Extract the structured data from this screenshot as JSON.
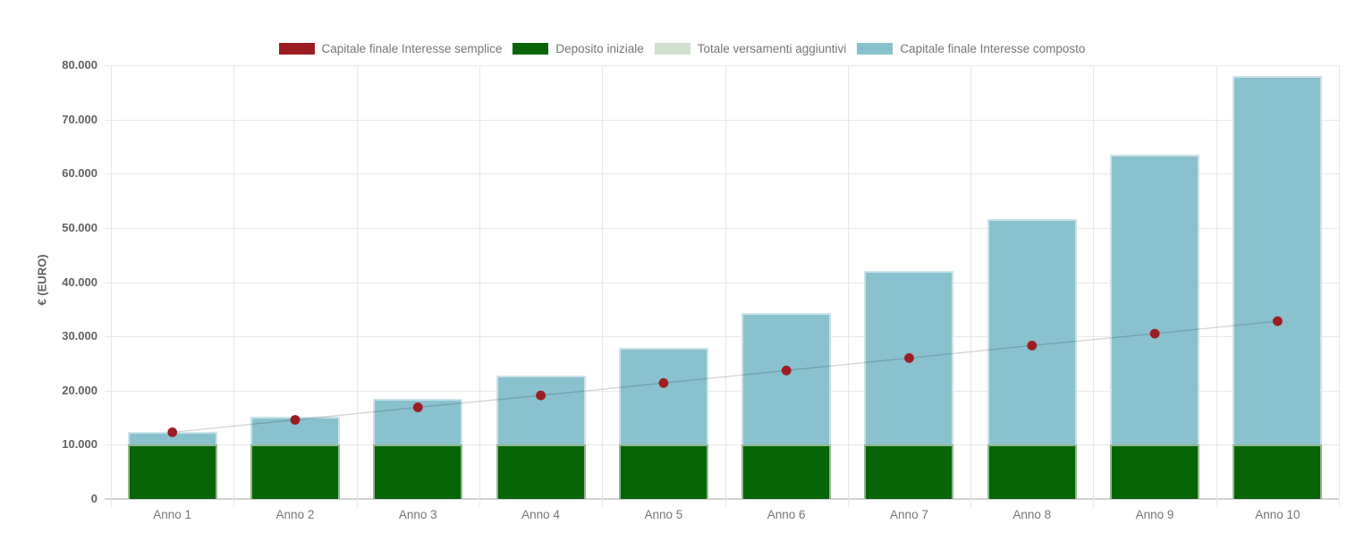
{
  "chart_data": {
    "type": "bar",
    "title": "",
    "xlabel": "",
    "ylabel": "€ (EURO)",
    "categories": [
      "Anno 1",
      "Anno 2",
      "Anno 3",
      "Anno 4",
      "Anno 5",
      "Anno 6",
      "Anno 7",
      "Anno 8",
      "Anno 9",
      "Anno 10"
    ],
    "series": [
      {
        "name": "Capitale finale Interesse semplice",
        "type": "line",
        "marker": "circle",
        "color": "#9c1e22",
        "line_color": "rgba(0,0,0,0.17)",
        "values": [
          12300,
          14600,
          16900,
          19100,
          21400,
          23700,
          26000,
          28300,
          30500,
          32800
        ]
      },
      {
        "name": "Deposito iniziale",
        "type": "bar",
        "color": "#076507",
        "values": [
          10000,
          10000,
          10000,
          10000,
          10000,
          10000,
          10000,
          10000,
          10000,
          10000
        ]
      },
      {
        "name": "Totale versamenti aggiuntivi",
        "type": "bar",
        "color": "#cfe0cc",
        "values": [
          0,
          0,
          0,
          0,
          0,
          0,
          0,
          0,
          0,
          0
        ]
      },
      {
        "name": "Capitale finale Interesse composto",
        "type": "bar",
        "color": "#8ac1ce",
        "values": [
          12300,
          15100,
          18500,
          22700,
          27900,
          34300,
          42000,
          51600,
          63500,
          78000
        ]
      }
    ],
    "ylim": [
      0,
      80000
    ],
    "ytick_step": 10000,
    "ytick_labels": [
      "0",
      "10.000",
      "20.000",
      "30.000",
      "40.000",
      "50.000",
      "60.000",
      "70.000",
      "80.000"
    ],
    "grid": true,
    "legend_position": "top"
  }
}
